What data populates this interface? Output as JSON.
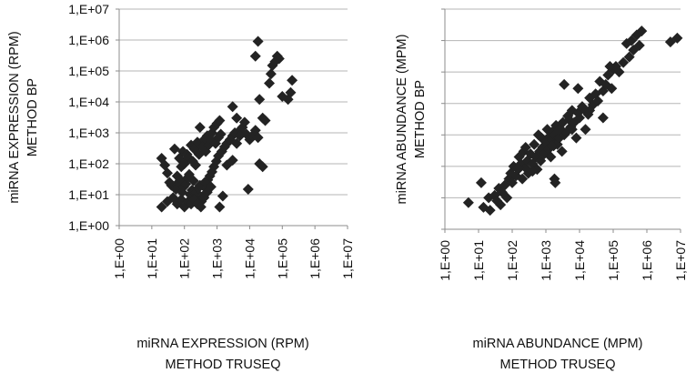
{
  "chart_data": [
    {
      "type": "scatter",
      "scale": "log10",
      "grid": "horizontal",
      "marker": "diamond",
      "marker_color": "#232323",
      "xlabel_lines": [
        "miRNA EXPRESSION (RPM)",
        "METHOD TRUSEQ"
      ],
      "ylabel_lines": [
        "miRNA EXPRESSION (RPM)",
        "METHOD BP"
      ],
      "xlim": [
        1,
        10000000
      ],
      "ylim": [
        1,
        10000000
      ],
      "x_tick_labels": [
        "1,E+00",
        "1,E+01",
        "1,E+02",
        "1,E+03",
        "1,E+04",
        "1,E+05",
        "1,E+06",
        "1,E+07"
      ],
      "y_tick_labels": [
        "1,E+00",
        "1,E+01",
        "1,E+02",
        "1,E+03",
        "1,E+04",
        "1,E+05",
        "1,E+06",
        "1,E+07"
      ],
      "points": [
        [
          50,
          300
        ],
        [
          70,
          150
        ],
        [
          90,
          250
        ],
        [
          120,
          200
        ],
        [
          160,
          400
        ],
        [
          200,
          300
        ],
        [
          250,
          500
        ],
        [
          300,
          1500
        ],
        [
          400,
          600
        ],
        [
          500,
          800
        ],
        [
          700,
          1000
        ],
        [
          800,
          1500
        ],
        [
          1000,
          2000
        ],
        [
          1200,
          2500
        ],
        [
          60,
          40
        ],
        [
          80,
          80
        ],
        [
          100,
          100
        ],
        [
          130,
          160
        ],
        [
          180,
          120
        ],
        [
          220,
          90
        ],
        [
          280,
          200
        ],
        [
          350,
          350
        ],
        [
          450,
          250
        ],
        [
          550,
          400
        ],
        [
          650,
          600
        ],
        [
          900,
          450
        ],
        [
          1100,
          700
        ],
        [
          1300,
          900
        ],
        [
          40,
          20
        ],
        [
          55,
          15
        ],
        [
          65,
          25
        ],
        [
          75,
          30
        ],
        [
          85,
          12
        ],
        [
          95,
          18
        ],
        [
          110,
          22
        ],
        [
          125,
          35
        ],
        [
          140,
          45
        ],
        [
          150,
          10
        ],
        [
          170,
          14
        ],
        [
          190,
          28
        ],
        [
          210,
          8
        ],
        [
          230,
          12
        ],
        [
          260,
          16
        ],
        [
          300,
          20
        ],
        [
          330,
          6
        ],
        [
          370,
          9
        ],
        [
          420,
          25
        ],
        [
          480,
          15
        ],
        [
          520,
          30
        ],
        [
          600,
          40
        ],
        [
          700,
          55
        ],
        [
          800,
          80
        ],
        [
          950,
          120
        ],
        [
          1100,
          180
        ],
        [
          1400,
          250
        ],
        [
          1700,
          350
        ],
        [
          2000,
          450
        ],
        [
          2500,
          600
        ],
        [
          3000,
          800
        ],
        [
          3500,
          1000
        ],
        [
          20,
          4
        ],
        [
          30,
          6
        ],
        [
          45,
          8
        ],
        [
          60,
          5
        ],
        [
          80,
          7
        ],
        [
          100,
          4
        ],
        [
          130,
          6
        ],
        [
          160,
          5
        ],
        [
          200,
          7
        ],
        [
          250,
          5
        ],
        [
          320,
          4
        ],
        [
          400,
          8
        ],
        [
          500,
          12
        ],
        [
          650,
          18
        ],
        [
          1200,
          4
        ],
        [
          1500,
          9
        ],
        [
          20,
          150
        ],
        [
          25,
          90
        ],
        [
          30,
          50
        ],
        [
          35,
          25
        ],
        [
          2000,
          90
        ],
        [
          3000,
          130
        ],
        [
          4000,
          3000
        ],
        [
          5000,
          1200
        ],
        [
          6000,
          1500
        ],
        [
          7000,
          2200
        ],
        [
          8000,
          900
        ],
        [
          10000,
          600
        ],
        [
          12000,
          800
        ],
        [
          15000,
          1200
        ],
        [
          18000,
          700
        ],
        [
          20000,
          100
        ],
        [
          25000,
          80
        ],
        [
          5000,
          800
        ],
        [
          4000,
          450
        ],
        [
          9000,
          15
        ],
        [
          15000,
          300000
        ],
        [
          18000,
          900000
        ],
        [
          20000,
          12000
        ],
        [
          25000,
          3000
        ],
        [
          30000,
          2500
        ],
        [
          40000,
          40000
        ],
        [
          45000,
          80000
        ],
        [
          50000,
          150000
        ],
        [
          60000,
          200000
        ],
        [
          70000,
          300000
        ],
        [
          80000,
          250000
        ],
        [
          100000,
          15000
        ],
        [
          150000,
          12000
        ],
        [
          180000,
          20000
        ],
        [
          3000,
          7000
        ],
        [
          200000,
          50000
        ]
      ]
    },
    {
      "type": "scatter",
      "scale": "log10",
      "grid": "horizontal",
      "marker": "diamond",
      "marker_color": "#232323",
      "xlabel_lines": [
        "miRNA ABUNDANCE (MPM)",
        "METHOD TRUSEQ"
      ],
      "ylabel_lines": [
        "miRNA ABUNDANCE (MPM)",
        "METHOD BP"
      ],
      "xlim": [
        1,
        10000000
      ],
      "ylim": [
        1,
        10000000
      ],
      "x_tick_labels": [
        "1,E+00",
        "1,E+01",
        "1,E+02",
        "1,E+03",
        "1,E+04",
        "1,E+05",
        "1,E+06",
        "1,E+07"
      ],
      "y_tick_labels": [],
      "points": [
        [
          5,
          7
        ],
        [
          12,
          30
        ],
        [
          14,
          5
        ],
        [
          20,
          10
        ],
        [
          22,
          4
        ],
        [
          30,
          12
        ],
        [
          35,
          8
        ],
        [
          40,
          20
        ],
        [
          45,
          6
        ],
        [
          50,
          15
        ],
        [
          60,
          25
        ],
        [
          70,
          10
        ],
        [
          80,
          40
        ],
        [
          90,
          60
        ],
        [
          100,
          30
        ],
        [
          110,
          100
        ],
        [
          130,
          50
        ],
        [
          150,
          80
        ],
        [
          160,
          200
        ],
        [
          180,
          120
        ],
        [
          200,
          40
        ],
        [
          220,
          300
        ],
        [
          250,
          90
        ],
        [
          280,
          150
        ],
        [
          300,
          60
        ],
        [
          350,
          250
        ],
        [
          400,
          120
        ],
        [
          450,
          500
        ],
        [
          500,
          200
        ],
        [
          550,
          80
        ],
        [
          600,
          1000
        ],
        [
          650,
          300
        ],
        [
          700,
          150
        ],
        [
          750,
          800
        ],
        [
          800,
          400
        ],
        [
          900,
          250
        ],
        [
          1000,
          600
        ],
        [
          1100,
          1500
        ],
        [
          1200,
          350
        ],
        [
          1300,
          900
        ],
        [
          1400,
          200
        ],
        [
          1500,
          700
        ],
        [
          1600,
          1300
        ],
        [
          1700,
          450
        ],
        [
          1800,
          1000
        ],
        [
          1900,
          30
        ],
        [
          2000,
          2000
        ],
        [
          2200,
          500
        ],
        [
          2500,
          800
        ],
        [
          2800,
          1500
        ],
        [
          3000,
          300
        ],
        [
          3200,
          2500
        ],
        [
          3500,
          1000
        ],
        [
          4000,
          1200
        ],
        [
          4500,
          4000
        ],
        [
          5000,
          3000
        ],
        [
          5500,
          1800
        ],
        [
          6000,
          6000
        ],
        [
          7000,
          2500
        ],
        [
          8000,
          800
        ],
        [
          9000,
          5000
        ],
        [
          10000,
          3500
        ],
        [
          12000,
          8000
        ],
        [
          15000,
          6000
        ],
        [
          18000,
          4500
        ],
        [
          20000,
          15000
        ],
        [
          25000,
          9000
        ],
        [
          30000,
          20000
        ],
        [
          35000,
          12000
        ],
        [
          40000,
          50000
        ],
        [
          50000,
          25000
        ],
        [
          60000,
          40000
        ],
        [
          70000,
          80000
        ],
        [
          90000,
          30000
        ],
        [
          100000,
          120000
        ],
        [
          120000,
          150000
        ],
        [
          150000,
          100000
        ],
        [
          200000,
          200000
        ],
        [
          250000,
          800000
        ],
        [
          300000,
          300000
        ],
        [
          350000,
          1000000
        ],
        [
          400000,
          500000
        ],
        [
          500000,
          1500000
        ],
        [
          600000,
          700000
        ],
        [
          700000,
          2000000
        ],
        [
          5000000,
          900000
        ],
        [
          8000000,
          1200000
        ],
        [
          9000,
          30000
        ],
        [
          3500,
          40000
        ],
        [
          80000,
          150000
        ],
        [
          150,
          90
        ],
        [
          400,
          70
        ],
        [
          250,
          400
        ],
        [
          1800,
          40
        ],
        [
          6000,
          1500
        ],
        [
          2500,
          1500
        ],
        [
          1500,
          450
        ],
        [
          15000,
          1500
        ],
        [
          20000,
          6000
        ],
        [
          50000,
          3500
        ]
      ]
    }
  ]
}
